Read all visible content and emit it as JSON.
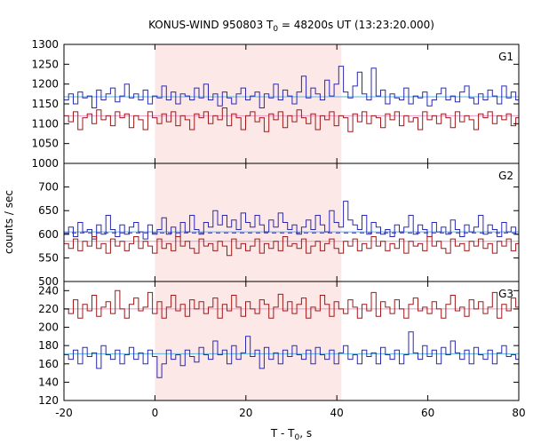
{
  "chart_data": {
    "type": "line",
    "title": "KONUS-WIND 950803 T",
    "title_sub": "0",
    "title_rest": " = 48200s UT (13:23:20.000)",
    "xlabel": "T - T",
    "xlabel_sub": "0",
    "xlabel_rest": ", s",
    "ylabel": "counts / sec",
    "x_range": [
      -20,
      80
    ],
    "x_ticks": [
      -20,
      0,
      20,
      40,
      60,
      80
    ],
    "x_tick_labels": [
      "-20",
      "0",
      "20",
      "40",
      "60",
      "80"
    ],
    "highlight_interval": [
      0,
      41
    ],
    "colors": {
      "highlight": "#fde8e8",
      "series_blue": "#2a2ab0",
      "series_red": "#a01818",
      "bg_blue": "#5ab4e6",
      "bg_red": "#e896c8",
      "dashed": "#2a2ab0"
    },
    "panels": [
      {
        "label": "G1",
        "ylim": [
          1000,
          1300
        ],
        "y_ticks": [
          1000,
          1050,
          1100,
          1150,
          1200,
          1250,
          1300
        ],
        "y_tick_labels": [
          "1000",
          "1050",
          "1100",
          "1150",
          "1200",
          "1250",
          "1300"
        ],
        "background_levels": [
          1168,
          1120
        ],
        "series": [
          {
            "color": "blue",
            "step": 1.024,
            "x0": -20,
            "values": [
              1160,
              1175,
              1150,
              1180,
              1165,
              1170,
              1140,
              1185,
              1160,
              1175,
              1190,
              1155,
              1170,
              1200,
              1165,
              1175,
              1160,
              1185,
              1150,
              1170,
              1165,
              1195,
              1160,
              1180,
              1150,
              1175,
              1170,
              1160,
              1190,
              1165,
              1200,
              1160,
              1175,
              1145,
              1180,
              1165,
              1150,
              1175,
              1190,
              1160,
              1170,
              1180,
              1140,
              1175,
              1165,
              1200,
              1160,
              1185,
              1170,
              1150,
              1180,
              1220,
              1165,
              1190,
              1175,
              1160,
              1210,
              1170,
              1200,
              1245,
              1180,
              1165,
              1195,
              1230,
              1175,
              1160,
              1240,
              1170,
              1185,
              1150,
              1175,
              1165,
              1160,
              1190,
              1150,
              1170,
              1165,
              1180,
              1145,
              1160,
              1175,
              1190,
              1160,
              1170,
              1155,
              1180,
              1195,
              1165,
              1150,
              1175,
              1160,
              1185,
              1170,
              1150,
              1195,
              1165,
              1180,
              1160,
              1170,
              1175
            ]
          },
          {
            "color": "red",
            "step": 1.024,
            "x0": -20,
            "values": [
              1120,
              1105,
              1130,
              1085,
              1115,
              1125,
              1100,
              1135,
              1110,
              1120,
              1095,
              1130,
              1115,
              1125,
              1090,
              1120,
              1110,
              1085,
              1130,
              1115,
              1100,
              1125,
              1105,
              1130,
              1095,
              1120,
              1110,
              1085,
              1125,
              1115,
              1130,
              1100,
              1120,
              1110,
              1140,
              1095,
              1125,
              1115,
              1085,
              1120,
              1130,
              1105,
              1115,
              1080,
              1125,
              1110,
              1130,
              1090,
              1120,
              1105,
              1135,
              1115,
              1100,
              1125,
              1085,
              1120,
              1110,
              1130,
              1095,
              1120,
              1115,
              1080,
              1125,
              1105,
              1130,
              1100,
              1120,
              1115,
              1090,
              1125,
              1110,
              1130,
              1095,
              1120,
              1105,
              1115,
              1085,
              1130,
              1110,
              1120,
              1100,
              1125,
              1115,
              1090,
              1130,
              1105,
              1120,
              1110,
              1085,
              1125,
              1115,
              1130,
              1100,
              1120,
              1110,
              1125,
              1095,
              1115,
              1130,
              1105
            ]
          }
        ]
      },
      {
        "label": "G2",
        "ylim": [
          500,
          750
        ],
        "y_ticks": [
          500,
          550,
          600,
          650,
          700
        ],
        "y_tick_labels": [
          "500",
          "550",
          "600",
          "650",
          "700"
        ],
        "background_levels": [
          605,
          585
        ],
        "dashed_level": 603,
        "series": [
          {
            "color": "blue",
            "step": 1.024,
            "x0": -20,
            "values": [
              600,
              615,
              595,
              625,
              605,
              610,
              590,
              620,
              600,
              640,
              610,
              595,
              620,
              600,
              615,
              625,
              605,
              590,
              620,
              600,
              610,
              635,
              600,
              615,
              595,
              625,
              605,
              640,
              610,
              600,
              625,
              615,
              650,
              620,
              640,
              615,
              630,
              610,
              645,
              625,
              615,
              640,
              620,
              605,
              630,
              615,
              645,
              625,
              610,
              620,
              600,
              615,
              630,
              610,
              640,
              620,
              605,
              650,
              625,
              615,
              670,
              630,
              620,
              610,
              640,
              600,
              625,
              615,
              600,
              610,
              595,
              620,
              605,
              615,
              640,
              600,
              620,
              610,
              595,
              625,
              605,
              615,
              600,
              630,
              610,
              595,
              620,
              605,
              615,
              640,
              600,
              620,
              610,
              595,
              625,
              605,
              615,
              600,
              620,
              610
            ]
          },
          {
            "color": "red",
            "step": 1.024,
            "x0": -20,
            "values": [
              580,
              570,
              590,
              565,
              585,
              575,
              595,
              570,
              580,
              560,
              590,
              575,
              585,
              565,
              580,
              595,
              570,
              585,
              575,
              560,
              590,
              570,
              580,
              565,
              595,
              575,
              585,
              570,
              560,
              590,
              575,
              580,
              565,
              585,
              575,
              555,
              590,
              570,
              580,
              565,
              575,
              590,
              560,
              580,
              570,
              585,
              565,
              595,
              575,
              580,
              570,
              590,
              560,
              575,
              585,
              565,
              580,
              590,
              570,
              560,
              585,
              575,
              590,
              565,
              580,
              570,
              595,
              575,
              585,
              565,
              580,
              570,
              590,
              560,
              585,
              575,
              580,
              565,
              595,
              575,
              585,
              570,
              560,
              590,
              575,
              580,
              565,
              585,
              575,
              590,
              570,
              580,
              560,
              585,
              575,
              590,
              565,
              580,
              575,
              585
            ]
          }
        ]
      },
      {
        "label": "G3",
        "ylim": [
          120,
          250
        ],
        "y_ticks": [
          120,
          140,
          160,
          180,
          200,
          220,
          240
        ],
        "y_tick_labels": [
          "120",
          "140",
          "160",
          "180",
          "200",
          "220",
          "240"
        ],
        "background_levels": [
          220,
          171
        ],
        "series": [
          {
            "color": "red",
            "step": 1.024,
            "x0": -20,
            "values": [
              220,
              215,
              230,
              210,
              225,
              218,
              235,
              212,
              222,
              228,
              215,
              240,
              220,
              210,
              225,
              232,
              218,
              222,
              238,
              215,
              228,
              210,
              222,
              235,
              218,
              225,
              212,
              230,
              220,
              228,
              215,
              222,
              232,
              210,
              225,
              218,
              235,
              222,
              212,
              228,
              220,
              215,
              230,
              225,
              210,
              222,
              236,
              218,
              228,
              215,
              225,
              232,
              210,
              222,
              218,
              235,
              225,
              212,
              228,
              220,
              215,
              230,
              222,
              210,
              225,
              218,
              238,
              212,
              228,
              222,
              215,
              230,
              220,
              210,
              225,
              232,
              218,
              222,
              215,
              228,
              220,
              210,
              225,
              235,
              218,
              222,
              212,
              230,
              220,
              228,
              215,
              222,
              238,
              210,
              225,
              218,
              232,
              222,
              215,
              228
            ]
          },
          {
            "color": "blue",
            "step": 1.024,
            "x0": -20,
            "values": [
              170,
              165,
              175,
              160,
              178,
              168,
              172,
              155,
              180,
              170,
              165,
              175,
              160,
              170,
              178,
              165,
              172,
              160,
              175,
              168,
              145,
              160,
              175,
              165,
              170,
              158,
              175,
              168,
              162,
              178,
              170,
              165,
              185,
              170,
              175,
              160,
              180,
              165,
              172,
              190,
              168,
              175,
              155,
              178,
              165,
              172,
              160,
              175,
              168,
              180,
              170,
              165,
              175,
              160,
              178,
              170,
              165,
              175,
              160,
              172,
              180,
              165,
              170,
              160,
              175,
              168,
              172,
              160,
              178,
              170,
              165,
              175,
              160,
              170,
              195,
              172,
              165,
              180,
              168,
              175,
              160,
              178,
              170,
              185,
              172,
              165,
              175,
              160,
              178,
              170,
              165,
              175,
              160,
              172,
              180,
              168,
              170,
              165,
              175,
              172
            ]
          }
        ]
      }
    ]
  }
}
